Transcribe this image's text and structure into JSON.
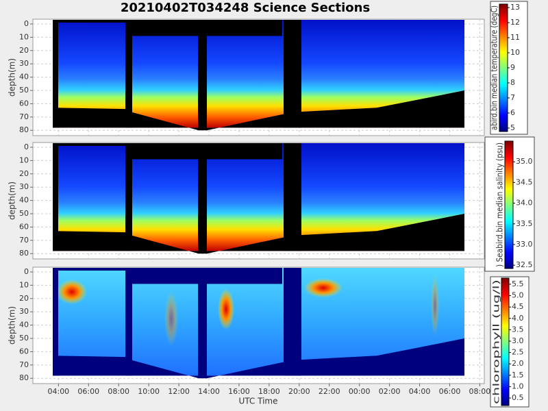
{
  "chart_data": {
    "type": "heatmap",
    "title": "20210402T034248 Science Sections",
    "x_label": "UTC Time",
    "xlim": [
      2.3,
      32.3
    ],
    "xticks": [
      {
        "value": 4,
        "label": "04:00"
      },
      {
        "value": 6,
        "label": "06:00"
      },
      {
        "value": 8,
        "label": "08:00"
      },
      {
        "value": 10,
        "label": "10:00"
      },
      {
        "value": 12,
        "label": "12:00"
      },
      {
        "value": 14,
        "label": "14:00"
      },
      {
        "value": 16,
        "label": "16:00"
      },
      {
        "value": 18,
        "label": "18:00"
      },
      {
        "value": 20,
        "label": "20:00"
      },
      {
        "value": 22,
        "label": "22:00"
      },
      {
        "value": 24,
        "label": "00:00"
      },
      {
        "value": 26,
        "label": "02:00"
      },
      {
        "value": 28,
        "label": "04:00"
      },
      {
        "value": 30,
        "label": "06:00"
      },
      {
        "value": 32,
        "label": "08:00"
      }
    ],
    "grid": true,
    "colormap": "jet",
    "panels": [
      {
        "ylabel": "depth(m)",
        "ylim": [
          -3.6,
          84
        ],
        "y_inverted": true,
        "yticks": [
          0,
          10,
          20,
          30,
          40,
          50,
          60,
          70,
          80
        ],
        "colorbar": {
          "label": "abird.bin median temperature (degC)",
          "lim": [
            4.77,
            13.23
          ],
          "ticks": [
            5,
            6,
            7,
            8,
            9,
            10,
            11,
            12,
            13
          ]
        }
      },
      {
        "ylabel": "depth(m)",
        "ylim": [
          -3.6,
          84
        ],
        "y_inverted": true,
        "yticks": [
          0,
          10,
          20,
          30,
          40,
          50,
          60,
          70,
          80
        ],
        "colorbar": {
          "label": ") Seabird.bin median salinity (psu)",
          "lim": [
            32.42,
            35.5
          ],
          "ticks": [
            32.5,
            {
              "value": 33,
              "label": "33.0"
            },
            33.5,
            {
              "value": 34,
              "label": "34.0"
            },
            34.5,
            {
              "value": 35,
              "label": "35.0"
            }
          ]
        }
      },
      {
        "ylabel": "depth(m)",
        "ylim": [
          -3.6,
          84
        ],
        "y_inverted": true,
        "yticks": [
          0,
          10,
          20,
          30,
          40,
          50,
          60,
          70,
          80
        ],
        "colorbar": {
          "label": "chlorophyll (ug/l)",
          "lim": [
            0.17,
            5.77
          ],
          "ticks": [
            0.5,
            {
              "value": 1,
              "label": "1.0"
            },
            1.5,
            {
              "value": 2,
              "label": "2.0"
            },
            2.5,
            {
              "value": 3,
              "label": "3.0"
            },
            3.5,
            {
              "value": 4,
              "label": "4.0"
            },
            4.5,
            {
              "value": 5,
              "label": "5.0"
            },
            5.5
          ]
        }
      }
    ]
  }
}
